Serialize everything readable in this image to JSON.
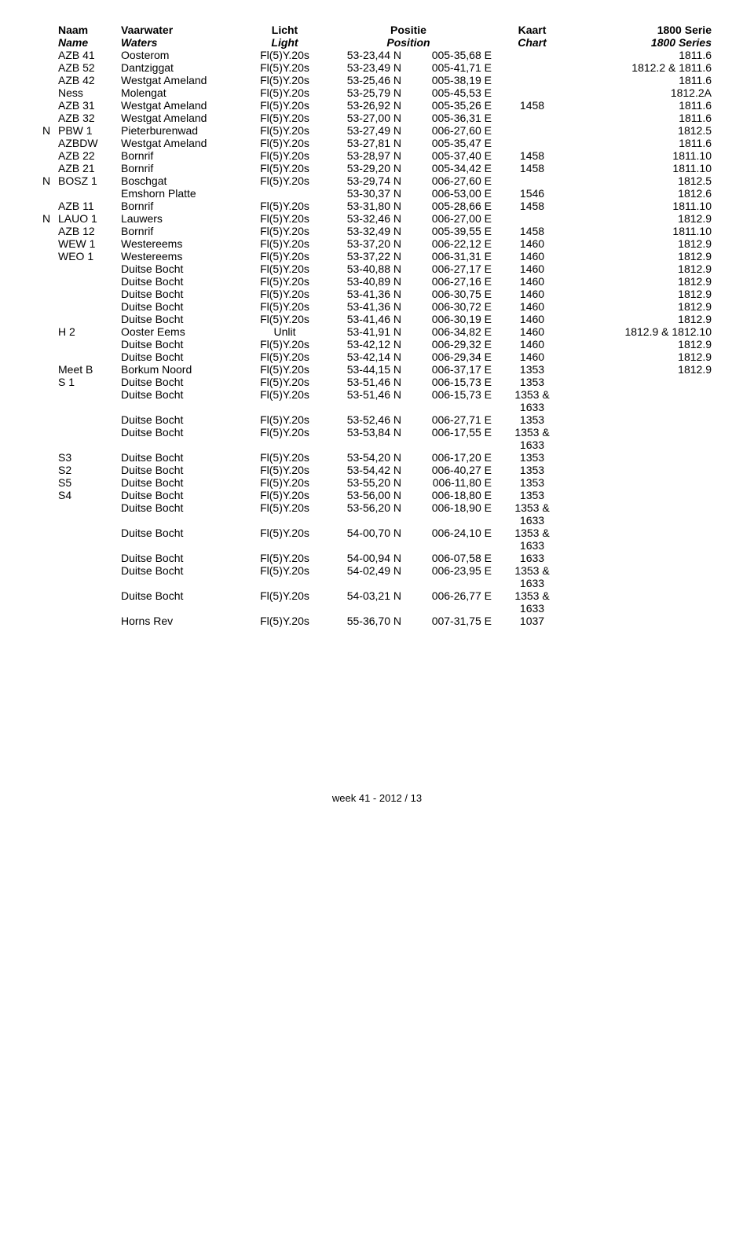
{
  "headers": {
    "row1": {
      "name": "Naam",
      "waters": "Vaarwater",
      "light": "Licht",
      "position": "Positie",
      "chart": "Kaart",
      "serie": "1800 Serie"
    },
    "row2": {
      "name": "Name",
      "waters": "Waters",
      "light": "Light",
      "position": "Position",
      "chart": "Chart",
      "serie": "1800 Series"
    }
  },
  "rows": [
    {
      "flag": "",
      "name": "AZB 41",
      "waters": "Oosterom",
      "light": "Fl(5)Y.20s",
      "lat": "53-23,44 N",
      "lon": "005-35,68 E",
      "chart": "",
      "serie": "1811.6"
    },
    {
      "flag": "",
      "name": "AZB 52",
      "waters": "Dantziggat",
      "light": "Fl(5)Y.20s",
      "lat": "53-23,49 N",
      "lon": "005-41,71 E",
      "chart": "",
      "serie": "1812.2 & 1811.6"
    },
    {
      "flag": "",
      "name": "AZB 42",
      "waters": "Westgat Ameland",
      "light": "Fl(5)Y.20s",
      "lat": "53-25,46 N",
      "lon": "005-38,19 E",
      "chart": "",
      "serie": "1811.6"
    },
    {
      "flag": "",
      "name": "Ness",
      "waters": "Molengat",
      "light": "Fl(5)Y.20s",
      "lat": "53-25,79 N",
      "lon": "005-45,53 E",
      "chart": "",
      "serie": "1812.2A"
    },
    {
      "flag": "",
      "name": "AZB 31",
      "waters": "Westgat Ameland",
      "light": "Fl(5)Y.20s",
      "lat": "53-26,92 N",
      "lon": "005-35,26 E",
      "chart": "1458",
      "serie": "1811.6"
    },
    {
      "flag": "",
      "name": "AZB 32",
      "waters": "Westgat Ameland",
      "light": "Fl(5)Y.20s",
      "lat": "53-27,00 N",
      "lon": "005-36,31 E",
      "chart": "",
      "serie": "1811.6"
    },
    {
      "flag": "N",
      "name": "PBW 1",
      "waters": "Pieterburenwad",
      "light": "Fl(5)Y.20s",
      "lat": "53-27,49 N",
      "lon": "006-27,60 E",
      "chart": "",
      "serie": "1812.5"
    },
    {
      "flag": "",
      "name": "AZBDW",
      "waters": "Westgat Ameland",
      "light": "Fl(5)Y.20s",
      "lat": "53-27,81 N",
      "lon": "005-35,47 E",
      "chart": "",
      "serie": "1811.6"
    },
    {
      "flag": "",
      "name": "AZB 22",
      "waters": "Bornrif",
      "light": "Fl(5)Y.20s",
      "lat": "53-28,97 N",
      "lon": "005-37,40 E",
      "chart": "1458",
      "serie": "1811.10"
    },
    {
      "flag": "",
      "name": "AZB 21",
      "waters": "Bornrif",
      "light": "Fl(5)Y.20s",
      "lat": "53-29,20 N",
      "lon": "005-34,42 E",
      "chart": "1458",
      "serie": "1811.10"
    },
    {
      "flag": "N",
      "name": "BOSZ 1",
      "waters": "Boschgat",
      "light": "Fl(5)Y.20s",
      "lat": "53-29,74 N",
      "lon": "006-27,60 E",
      "chart": "",
      "serie": "1812.5"
    },
    {
      "flag": "",
      "name": "",
      "waters": "Emshorn Platte",
      "light": "",
      "lat": "53-30,37 N",
      "lon": "006-53,00 E",
      "chart": "1546",
      "serie": "1812.6"
    },
    {
      "flag": "",
      "name": "AZB 11",
      "waters": "Bornrif",
      "light": "Fl(5)Y.20s",
      "lat": "53-31,80 N",
      "lon": "005-28,66 E",
      "chart": "1458",
      "serie": "1811.10"
    },
    {
      "flag": "N",
      "name": "LAUO 1",
      "waters": "Lauwers",
      "light": "Fl(5)Y.20s",
      "lat": "53-32,46 N",
      "lon": "006-27,00 E",
      "chart": "",
      "serie": "1812.9"
    },
    {
      "flag": "",
      "name": "AZB 12",
      "waters": "Bornrif",
      "light": "Fl(5)Y.20s",
      "lat": "53-32,49 N",
      "lon": "005-39,55 E",
      "chart": "1458",
      "serie": "1811.10"
    },
    {
      "flag": "",
      "name": "WEW 1",
      "waters": "Westereems",
      "light": "Fl(5)Y.20s",
      "lat": "53-37,20 N",
      "lon": "006-22,12 E",
      "chart": "1460",
      "serie": "1812.9"
    },
    {
      "flag": "",
      "name": "WEO 1",
      "waters": "Westereems",
      "light": "Fl(5)Y.20s",
      "lat": "53-37,22 N",
      "lon": "006-31,31 E",
      "chart": "1460",
      "serie": "1812.9"
    },
    {
      "flag": "",
      "name": "",
      "waters": "Duitse Bocht",
      "light": "Fl(5)Y.20s",
      "lat": "53-40,88 N",
      "lon": "006-27,17 E",
      "chart": "1460",
      "serie": "1812.9"
    },
    {
      "flag": "",
      "name": "",
      "waters": "Duitse Bocht",
      "light": "Fl(5)Y.20s",
      "lat": "53-40,89 N",
      "lon": "006-27,16 E",
      "chart": "1460",
      "serie": "1812.9"
    },
    {
      "flag": "",
      "name": "",
      "waters": "Duitse Bocht",
      "light": "Fl(5)Y.20s",
      "lat": "53-41,36 N",
      "lon": "006-30,75 E",
      "chart": "1460",
      "serie": "1812.9"
    },
    {
      "flag": "",
      "name": "",
      "waters": "Duitse Bocht",
      "light": "Fl(5)Y.20s",
      "lat": "53-41,36 N",
      "lon": "006-30,72 E",
      "chart": "1460",
      "serie": "1812.9"
    },
    {
      "flag": "",
      "name": "",
      "waters": "Duitse Bocht",
      "light": "Fl(5)Y.20s",
      "lat": "53-41,46 N",
      "lon": "006-30,19 E",
      "chart": "1460",
      "serie": "1812.9"
    },
    {
      "flag": "",
      "name": "H 2",
      "waters": "Ooster Eems",
      "light": "Unlit",
      "lat": "53-41,91 N",
      "lon": "006-34,82 E",
      "chart": "1460",
      "serie": "1812.9 & 1812.10"
    },
    {
      "flag": "",
      "name": "",
      "waters": "Duitse Bocht",
      "light": "Fl(5)Y.20s",
      "lat": "53-42,12 N",
      "lon": "006-29,32 E",
      "chart": "1460",
      "serie": "1812.9"
    },
    {
      "flag": "",
      "name": "",
      "waters": "Duitse Bocht",
      "light": "Fl(5)Y.20s",
      "lat": "53-42,14 N",
      "lon": "006-29,34 E",
      "chart": "1460",
      "serie": "1812.9"
    },
    {
      "flag": "",
      "name": "Meet B",
      "waters": "Borkum Noord",
      "light": "Fl(5)Y.20s",
      "lat": "53-44,15 N",
      "lon": "006-37,17 E",
      "chart": "1353",
      "serie": "1812.9"
    },
    {
      "flag": "",
      "name": "S 1",
      "waters": "Duitse Bocht",
      "light": "Fl(5)Y.20s",
      "lat": "53-51,46 N",
      "lon": "006-15,73 E",
      "chart": "1353",
      "serie": ""
    },
    {
      "flag": "",
      "name": "",
      "waters": "Duitse Bocht",
      "light": "Fl(5)Y.20s",
      "lat": "53-51,46 N",
      "lon": "006-15,73 E",
      "chart": "1353 &",
      "serie": ""
    },
    {
      "flag": "",
      "name": "",
      "waters": "",
      "light": "",
      "lat": "",
      "lon": "",
      "chart": "1633",
      "serie": ""
    },
    {
      "flag": "",
      "name": "",
      "waters": "Duitse Bocht",
      "light": "Fl(5)Y.20s",
      "lat": "53-52,46 N",
      "lon": "006-27,71 E",
      "chart": "1353",
      "serie": ""
    },
    {
      "flag": "",
      "name": "",
      "waters": "Duitse Bocht",
      "light": "Fl(5)Y.20s",
      "lat": "53-53,84 N",
      "lon": "006-17,55 E",
      "chart": "1353 &",
      "serie": ""
    },
    {
      "flag": "",
      "name": "",
      "waters": "",
      "light": "",
      "lat": "",
      "lon": "",
      "chart": "1633",
      "serie": ""
    },
    {
      "flag": "",
      "name": "S3",
      "waters": "Duitse Bocht",
      "light": "Fl(5)Y.20s",
      "lat": "53-54,20 N",
      "lon": "006-17,20 E",
      "chart": "1353",
      "serie": ""
    },
    {
      "flag": "",
      "name": "S2",
      "waters": "Duitse Bocht",
      "light": "Fl(5)Y.20s",
      "lat": "53-54,42 N",
      "lon": "006-40,27 E",
      "chart": "1353",
      "serie": ""
    },
    {
      "flag": "",
      "name": "S5",
      "waters": "Duitse Bocht",
      "light": "Fl(5)Y.20s",
      "lat": "53-55,20 N",
      "lon": "006-11,80 E",
      "chart": "1353",
      "serie": ""
    },
    {
      "flag": "",
      "name": "S4",
      "waters": "Duitse Bocht",
      "light": "Fl(5)Y.20s",
      "lat": "53-56,00 N",
      "lon": "006-18,80 E",
      "chart": "1353",
      "serie": ""
    },
    {
      "flag": "",
      "name": "",
      "waters": "Duitse Bocht",
      "light": "Fl(5)Y.20s",
      "lat": "53-56,20 N",
      "lon": "006-18,90 E",
      "chart": "1353 &",
      "serie": ""
    },
    {
      "flag": "",
      "name": "",
      "waters": "",
      "light": "",
      "lat": "",
      "lon": "",
      "chart": "1633",
      "serie": ""
    },
    {
      "flag": "",
      "name": "",
      "waters": "Duitse Bocht",
      "light": "Fl(5)Y.20s",
      "lat": "54-00,70 N",
      "lon": "006-24,10 E",
      "chart": "1353 &",
      "serie": ""
    },
    {
      "flag": "",
      "name": "",
      "waters": "",
      "light": "",
      "lat": "",
      "lon": "",
      "chart": "1633",
      "serie": ""
    },
    {
      "flag": "",
      "name": "",
      "waters": "Duitse Bocht",
      "light": "Fl(5)Y.20s",
      "lat": "54-00,94 N",
      "lon": "006-07,58 E",
      "chart": "1633",
      "serie": ""
    },
    {
      "flag": "",
      "name": "",
      "waters": "Duitse Bocht",
      "light": "Fl(5)Y.20s",
      "lat": "54-02,49 N",
      "lon": "006-23,95 E",
      "chart": "1353 &",
      "serie": ""
    },
    {
      "flag": "",
      "name": "",
      "waters": "",
      "light": "",
      "lat": "",
      "lon": "",
      "chart": "1633",
      "serie": ""
    },
    {
      "flag": "",
      "name": "",
      "waters": "Duitse Bocht",
      "light": "Fl(5)Y.20s",
      "lat": "54-03,21 N",
      "lon": "006-26,77 E",
      "chart": "1353 &",
      "serie": ""
    },
    {
      "flag": "",
      "name": "",
      "waters": "",
      "light": "",
      "lat": "",
      "lon": "",
      "chart": "1633",
      "serie": ""
    },
    {
      "flag": "",
      "name": "",
      "waters": "Horns Rev",
      "light": "Fl(5)Y.20s",
      "lat": "55-36,70 N",
      "lon": "007-31,75 E",
      "chart": "1037",
      "serie": ""
    }
  ],
  "footer": "week 41 - 2012 / 13"
}
